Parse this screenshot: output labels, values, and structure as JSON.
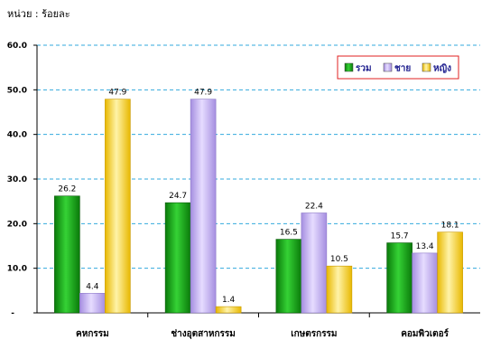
{
  "unit_label": "หน่วย : ร้อยละ",
  "colors": {
    "total": "#1fb51f",
    "male": "#c9b3f7",
    "female": "#ffdd55",
    "grid": "#33aadd",
    "legend_border": "#e02020"
  },
  "chart_data": {
    "type": "bar",
    "categories": [
      "คหกรรม",
      "ช่างอุตสาหกรรม",
      "เกษตรกรรม",
      "คอมพิวเตอร์"
    ],
    "series": [
      {
        "name": "รวม",
        "values": [
          26.2,
          24.7,
          16.5,
          15.7
        ]
      },
      {
        "name": "ชาย",
        "values": [
          4.4,
          47.9,
          22.4,
          13.4
        ]
      },
      {
        "name": "หญิง",
        "values": [
          47.9,
          1.4,
          10.5,
          18.1
        ]
      }
    ],
    "ylim": [
      0,
      60
    ],
    "yticks": [
      "-",
      "10.0",
      "20.0",
      "30.0",
      "40.0",
      "50.0",
      "60.0"
    ],
    "grid": true,
    "legend_position": "top-right"
  }
}
